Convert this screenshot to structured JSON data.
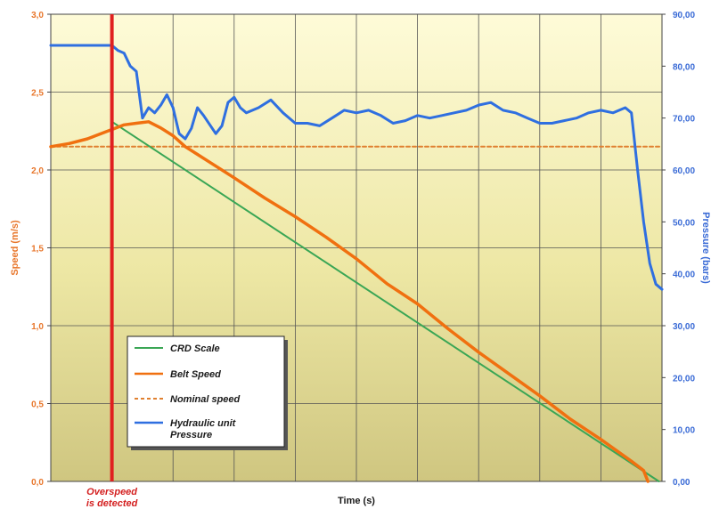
{
  "chart_data": {
    "type": "line",
    "xlabel": "Time (s)",
    "ylabel_left": "Speed (m/s)",
    "ylabel_right": "Pressure (bars)",
    "x_range": [
      0,
      100
    ],
    "ylim_left": [
      0,
      3.0
    ],
    "ylim_right": [
      0,
      90
    ],
    "left_ticks": [
      "0,0",
      "0,5",
      "1,0",
      "1,5",
      "2,0",
      "2,5",
      "3,0"
    ],
    "right_ticks": [
      "0,00",
      "10,00",
      "20,00",
      "30,00",
      "40,00",
      "50,00",
      "60,00",
      "70,00",
      "80,00",
      "90,00"
    ],
    "grid": true,
    "legend_placement": "bottom-left",
    "colors": {
      "crd": "#3aa655",
      "belt": "#f07010",
      "nominal": "#e08030",
      "pressure": "#2f6fe0",
      "marker": "#e02020"
    },
    "series": [
      {
        "name": "CRD Scale",
        "axis": "left",
        "style": "solid",
        "x": [
          10,
          99.5
        ],
        "y": [
          2.31,
          0.0
        ]
      },
      {
        "name": "Belt Speed",
        "axis": "left",
        "style": "solid",
        "x": [
          0,
          3,
          6,
          10,
          12,
          14,
          16,
          18,
          20,
          22,
          24,
          26,
          30,
          35,
          40,
          45,
          50,
          55,
          60,
          65,
          70,
          75,
          80,
          85,
          90,
          95,
          97,
          97.7
        ],
        "y": [
          2.15,
          2.17,
          2.2,
          2.26,
          2.29,
          2.3,
          2.31,
          2.27,
          2.22,
          2.15,
          2.1,
          2.05,
          1.95,
          1.82,
          1.7,
          1.57,
          1.43,
          1.27,
          1.14,
          0.98,
          0.83,
          0.69,
          0.55,
          0.4,
          0.27,
          0.13,
          0.07,
          0.0
        ]
      },
      {
        "name": "Nominal speed",
        "axis": "left",
        "style": "dashed",
        "x": [
          0,
          100
        ],
        "y": [
          2.15,
          2.15
        ]
      },
      {
        "name": "Hydraulic unit Pressure",
        "axis": "right",
        "style": "solid",
        "x": [
          0,
          10,
          11,
          12,
          13,
          14,
          15,
          16,
          17,
          18,
          19,
          20,
          21,
          22,
          23,
          24,
          25,
          27,
          28,
          29,
          30,
          31,
          32,
          34,
          36,
          38,
          40,
          42,
          44,
          46,
          48,
          50,
          52,
          54,
          56,
          58,
          60,
          62,
          64,
          66,
          68,
          70,
          72,
          74,
          76,
          78,
          80,
          82,
          84,
          86,
          88,
          90,
          92,
          94,
          95,
          96,
          97,
          98,
          99,
          100
        ],
        "y": [
          84,
          84,
          83,
          82.5,
          80,
          79,
          70,
          72,
          71,
          72.5,
          74.5,
          72,
          67,
          66,
          68,
          72,
          70.5,
          67,
          68.5,
          73,
          74,
          72,
          71,
          72,
          73.5,
          71,
          69,
          69,
          68.5,
          70,
          71.5,
          71,
          71.5,
          70.5,
          69,
          69.5,
          70.5,
          70,
          70.5,
          71,
          71.5,
          72.5,
          73,
          71.5,
          71,
          70,
          69,
          69,
          69.5,
          70,
          71,
          71.5,
          71,
          72,
          71,
          60,
          50,
          42,
          38,
          37
        ]
      }
    ],
    "annotations": [
      {
        "text_line1": "Overspeed",
        "text_line2": "is detected",
        "x": 10
      }
    ]
  }
}
